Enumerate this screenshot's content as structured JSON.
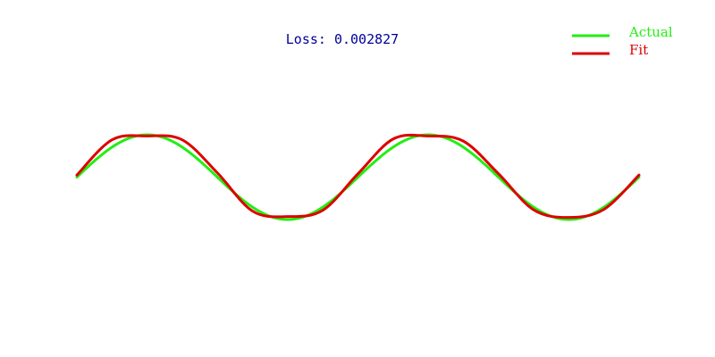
{
  "chart_data": {
    "type": "line",
    "title": "",
    "xlabel": "",
    "ylabel": "",
    "x_range": [
      0,
      12.566
    ],
    "y_range": [
      -1,
      1
    ],
    "grid": false,
    "axes_visible": false,
    "legend_position": "top-right",
    "annotation": {
      "text": "Loss: 0.002827",
      "color": "#000099"
    },
    "series": [
      {
        "name": "Actual",
        "color": "#22ee11",
        "function": "sin",
        "x": [
          0,
          0.785,
          1.571,
          2.356,
          3.142,
          3.927,
          4.712,
          5.498,
          6.283,
          7.069,
          7.854,
          8.639,
          9.425,
          10.21,
          10.996,
          11.781,
          12.566
        ],
        "y": [
          0,
          0.707,
          1.0,
          0.707,
          0,
          -0.707,
          -1.0,
          -0.707,
          0,
          0.707,
          1.0,
          0.707,
          0,
          -0.707,
          -1.0,
          -0.707,
          0
        ]
      },
      {
        "name": "Fit",
        "color": "#dd0000",
        "x": [
          0,
          0.785,
          1.571,
          2.356,
          3.142,
          3.927,
          4.712,
          5.498,
          6.283,
          7.069,
          7.854,
          8.639,
          9.425,
          10.21,
          10.996,
          11.781,
          12.566
        ],
        "y": [
          0.05,
          0.88,
          0.97,
          0.88,
          0.1,
          -0.8,
          -0.93,
          -0.78,
          0.08,
          0.9,
          0.97,
          0.85,
          0.08,
          -0.77,
          -0.95,
          -0.76,
          0.05
        ]
      }
    ]
  }
}
